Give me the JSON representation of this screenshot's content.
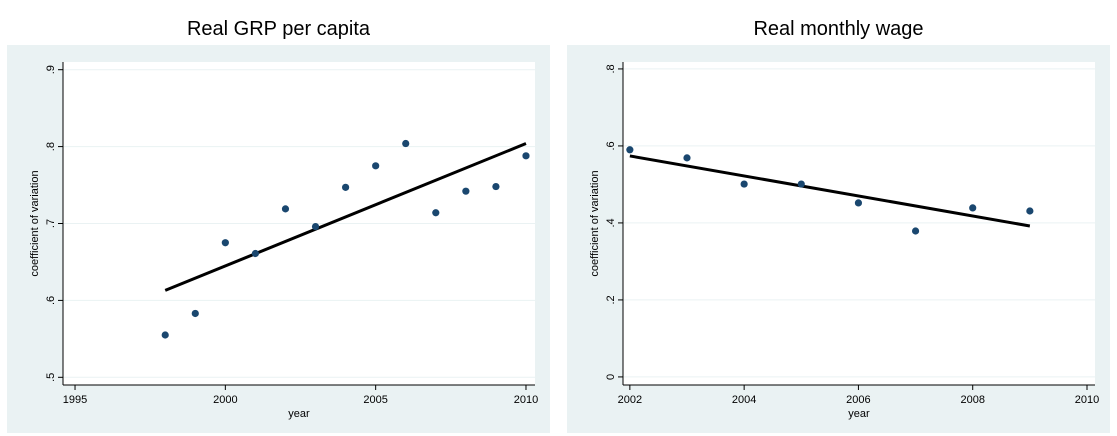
{
  "chart_data": [
    {
      "type": "scatter",
      "title": "Real GRP per capita",
      "x_label": "year",
      "y_label": "coefficient of variation",
      "x": [
        1998,
        1999,
        2000,
        2001,
        2002,
        2003,
        2004,
        2005,
        2006,
        2007,
        2008,
        2009,
        2010
      ],
      "values": [
        0.555,
        0.583,
        0.675,
        0.661,
        0.719,
        0.696,
        0.747,
        0.775,
        0.804,
        0.714,
        0.742,
        0.748,
        0.788
      ],
      "color": "#1a476f",
      "fit": {
        "x": [
          1998,
          2010
        ],
        "values": [
          0.613,
          0.804
        ],
        "color": "#000000"
      },
      "xlim": [
        1994.6,
        2010.3
      ],
      "xticks": [
        1995,
        2000,
        2005,
        2010
      ],
      "ylim": [
        0.49,
        0.91
      ],
      "yticks": [
        {
          "value": 0.5,
          "label": ".5"
        },
        {
          "value": 0.6,
          "label": ".6"
        },
        {
          "value": 0.7,
          "label": ".7"
        },
        {
          "value": 0.8,
          "label": ".8"
        },
        {
          "value": 0.9,
          "label": ".9"
        }
      ],
      "grid": true
    },
    {
      "type": "scatter",
      "title": "Real monthly wage",
      "x_label": "year",
      "y_label": "coefficient of variation",
      "x": [
        2002,
        2003,
        2004,
        2005,
        2006,
        2007,
        2008,
        2009
      ],
      "values": [
        0.59,
        0.569,
        0.501,
        0.501,
        0.452,
        0.379,
        0.439,
        0.431
      ],
      "color": "#1a476f",
      "fit": {
        "x": [
          2002,
          2009
        ],
        "values": [
          0.574,
          0.392
        ],
        "color": "#000000"
      },
      "xlim": [
        2001.88,
        2010.14
      ],
      "xticks": [
        2002,
        2004,
        2006,
        2008,
        2010
      ],
      "ylim": [
        -0.021,
        0.818
      ],
      "yticks": [
        0,
        {
          "value": 0.2,
          "label": ".2"
        },
        {
          "value": 0.4,
          "label": ".4"
        },
        {
          "value": 0.6,
          "label": ".6"
        },
        {
          "value": 0.8,
          "label": ".8"
        }
      ],
      "grid": true
    }
  ]
}
